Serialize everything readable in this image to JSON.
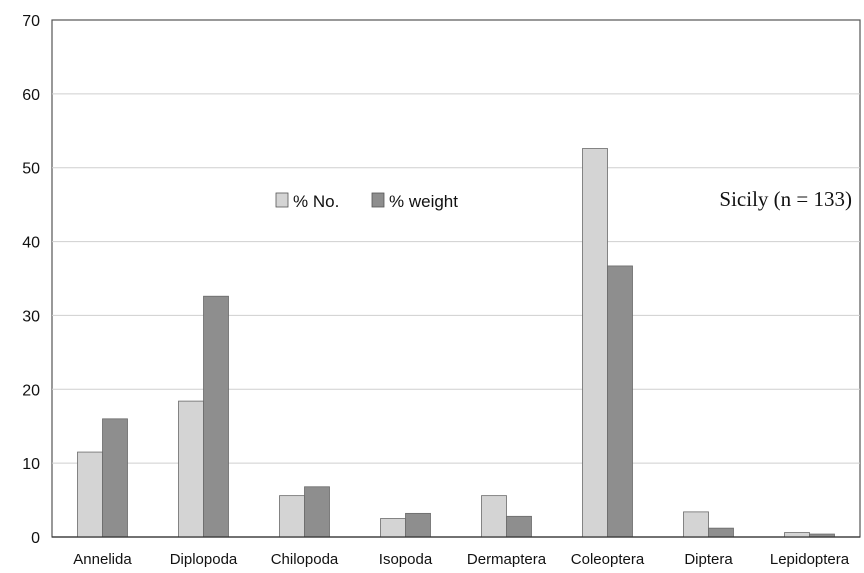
{
  "chart_data": {
    "type": "bar",
    "categories": [
      "Annelida",
      "Diplopoda",
      "Chilopoda",
      "Isopoda",
      "Dermaptera",
      "Coleoptera",
      "Diptera",
      "Lepidoptera"
    ],
    "series": [
      {
        "name": "% No.",
        "values": [
          11.5,
          18.4,
          5.6,
          2.5,
          5.6,
          52.6,
          3.4,
          0.6
        ],
        "color": "#d4d4d4"
      },
      {
        "name": "% weight",
        "values": [
          16.0,
          32.6,
          6.8,
          3.2,
          2.8,
          36.7,
          1.2,
          0.4
        ],
        "color": "#8e8e8e"
      }
    ],
    "ylim": [
      0,
      70
    ],
    "yticks": [
      "0",
      "10",
      "20",
      "30",
      "40",
      "50",
      "60",
      "70"
    ],
    "grid": true,
    "legend": "top-center",
    "annotation": "Sicily (n = 133)",
    "title": "",
    "xlabel": "",
    "ylabel": ""
  }
}
